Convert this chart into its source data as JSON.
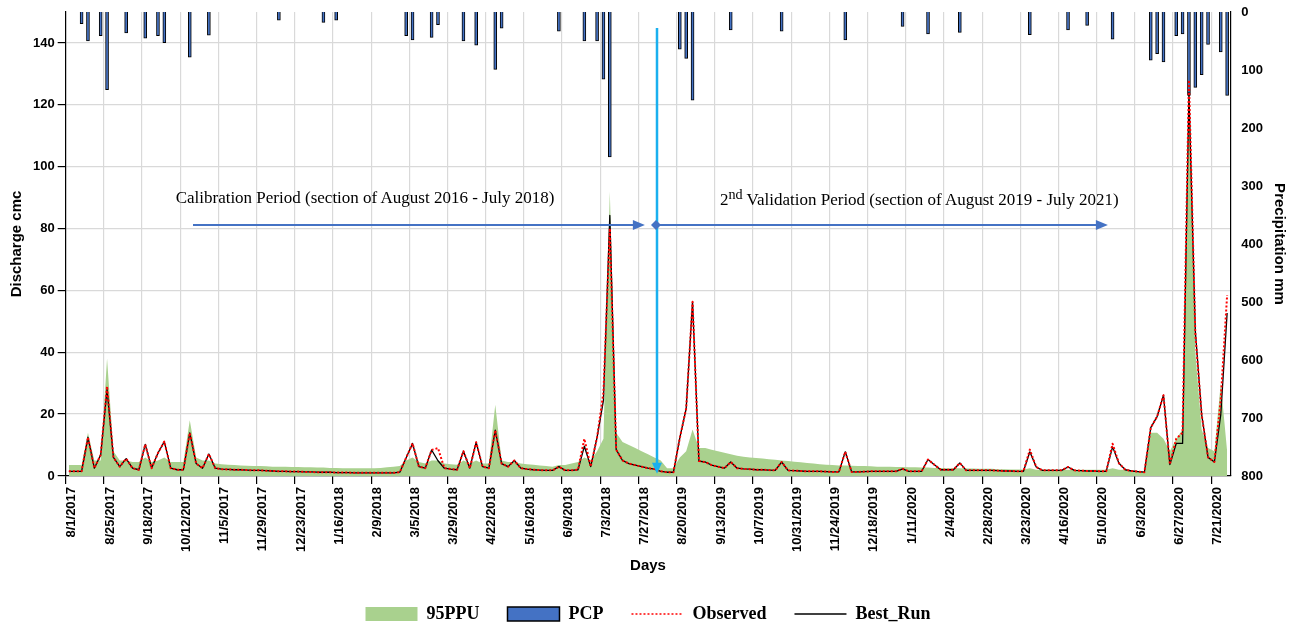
{
  "chart_data": {
    "type": "line",
    "xlabel": "Days",
    "ylabel": "Discharge cmc",
    "y2label": "Precipitation mm",
    "annotations": [
      "Calibration Period (section of August 2016 - July 2018)",
      "2$^{nd}$ Validation Period (section of August 2019 - July 2021)"
    ],
    "categories": [
      "8/1/2017",
      null,
      null,
      null,
      null,
      null,
      "8/25/2017",
      null,
      null,
      null,
      null,
      null,
      "9/18/2017",
      null,
      null,
      null,
      null,
      null,
      "10/12/2017",
      null,
      null,
      null,
      null,
      null,
      "11/5/2017",
      null,
      null,
      null,
      null,
      null,
      "11/29/2017",
      null,
      null,
      null,
      null,
      null,
      "12/23/2017",
      null,
      null,
      null,
      null,
      null,
      "1/16/2018",
      null,
      null,
      null,
      null,
      null,
      "2/9/2018",
      null,
      null,
      null,
      null,
      null,
      "3/5/2018",
      null,
      null,
      null,
      null,
      null,
      "3/29/2018",
      null,
      null,
      null,
      null,
      null,
      "4/22/2018",
      null,
      null,
      null,
      null,
      null,
      "5/16/2018",
      null,
      null,
      null,
      null,
      null,
      "6/9/2018",
      null,
      null,
      null,
      null,
      null,
      "7/3/2018",
      null,
      null,
      null,
      null,
      null,
      "7/27/2018",
      null,
      null,
      null,
      null,
      null,
      "8/20/2019",
      null,
      null,
      null,
      null,
      null,
      "9/13/2019",
      null,
      null,
      null,
      null,
      null,
      "10/7/2019",
      null,
      null,
      null,
      null,
      null,
      "10/31/2019",
      null,
      null,
      null,
      null,
      null,
      "11/24/2019",
      null,
      null,
      null,
      null,
      null,
      "12/18/2019",
      null,
      null,
      null,
      null,
      null,
      "1/11/2020",
      null,
      null,
      null,
      null,
      null,
      "2/4/2020",
      null,
      null,
      null,
      null,
      null,
      "2/28/2020",
      null,
      null,
      null,
      null,
      null,
      "3/23/2020",
      null,
      null,
      null,
      null,
      null,
      "4/16/2020",
      null,
      null,
      null,
      null,
      null,
      "5/10/2020",
      null,
      null,
      null,
      null,
      null,
      "6/3/2020",
      null,
      null,
      null,
      null,
      null,
      "6/27/2020",
      null,
      null,
      null,
      null,
      null,
      "7/21/2020",
      null,
      null
    ],
    "ylim": [
      0,
      150
    ],
    "yticks": [
      0,
      20,
      40,
      60,
      80,
      100,
      120,
      140
    ],
    "y2lim": [
      800,
      0
    ],
    "y2ticks": [
      0,
      100,
      200,
      300,
      400,
      500,
      600,
      700,
      800
    ],
    "grid": true,
    "legend": "bottom",
    "marker": "none",
    "series": [
      {
        "name": "95PPU",
        "type": "area",
        "color": "#a9d18e",
        "values": [
          3.5,
          3.5,
          3.5,
          14,
          5,
          5,
          38,
          8,
          5,
          5,
          4.5,
          4.5,
          6,
          4.5,
          5,
          6,
          4.5,
          4.5,
          4.5,
          18,
          6,
          5,
          5,
          4,
          3.8,
          3.6,
          3.5,
          3.4,
          3.3,
          3.2,
          3.2,
          3.1,
          3,
          3,
          3,
          2.9,
          2.9,
          2.8,
          2.8,
          2.7,
          2.7,
          2.6,
          2.6,
          2.5,
          2.5,
          2.5,
          2.5,
          2.5,
          2.5,
          2.6,
          2.8,
          3,
          3.2,
          5,
          6,
          4.5,
          4,
          5,
          5,
          4,
          3.8,
          3.6,
          5,
          4,
          5,
          4,
          4,
          23,
          5,
          4.5,
          4.5,
          4,
          3.8,
          3.6,
          3.4,
          3.2,
          3,
          3.5,
          3.5,
          4,
          4.5,
          6,
          5,
          8,
          12,
          92,
          14,
          11,
          10,
          9,
          8,
          7,
          6,
          5,
          2.5,
          2.5,
          6,
          8,
          15,
          9,
          9,
          8.5,
          8,
          7.5,
          7,
          6.5,
          6.2,
          6,
          5.8,
          5.6,
          5.4,
          5.2,
          5,
          4.8,
          4.6,
          4.4,
          4.2,
          4,
          3.8,
          3.6,
          3.5,
          3.4,
          3.4,
          3.3,
          3.2,
          3.2,
          3.1,
          3,
          3,
          3,
          2.9,
          2.9,
          2.8,
          2.8,
          2.7,
          2.7,
          2.6,
          2.6,
          2.5,
          2.5,
          2.5,
          2.4,
          2.4,
          2.3,
          2.3,
          2.3,
          2.2,
          2.2,
          2.1,
          2.1,
          2.1,
          2.5,
          2,
          2,
          2,
          2,
          2,
          2,
          2,
          2,
          2,
          2,
          2,
          2,
          2.5,
          2,
          2,
          1.8,
          1.6,
          1.5,
          14,
          14,
          12,
          8,
          12,
          15,
          130,
          40,
          15,
          9,
          8,
          30,
          8
        ]
      },
      {
        "name": "PCP",
        "type": "bar",
        "axis": "y2",
        "color": "#4472c4",
        "values": [
          0,
          0,
          20,
          50,
          0,
          41,
          134,
          0,
          0,
          36,
          0,
          0,
          45,
          0,
          41,
          53,
          0,
          0,
          0,
          78,
          0,
          0,
          40,
          0,
          0,
          0,
          0,
          0,
          0,
          0,
          0,
          0,
          0,
          14,
          0,
          0,
          0,
          0,
          0,
          0,
          18,
          0,
          14,
          0,
          0,
          0,
          0,
          0,
          0,
          0,
          0,
          0,
          0,
          41,
          48,
          0,
          0,
          44,
          22,
          0,
          0,
          0,
          50,
          0,
          57,
          0,
          0,
          99,
          28,
          0,
          0,
          0,
          0,
          0,
          0,
          0,
          0,
          33,
          0,
          0,
          0,
          50,
          0,
          50,
          116,
          250,
          0,
          0,
          0,
          0,
          0,
          0,
          0,
          0,
          0,
          0,
          64,
          80,
          152,
          0,
          0,
          0,
          0,
          0,
          31,
          0,
          0,
          0,
          0,
          0,
          0,
          0,
          33,
          0,
          0,
          0,
          0,
          0,
          0,
          0,
          0,
          0,
          48,
          0,
          0,
          0,
          0,
          0,
          0,
          0,
          0,
          25,
          0,
          0,
          0,
          38,
          0,
          0,
          0,
          0,
          35,
          0,
          0,
          0,
          0,
          0,
          0,
          0,
          0,
          0,
          0,
          39,
          0,
          0,
          0,
          0,
          0,
          31,
          0,
          0,
          23,
          0,
          0,
          0,
          47,
          0,
          0,
          0,
          0,
          0,
          83,
          72,
          86,
          0,
          41,
          38,
          144,
          130,
          108,
          56,
          0,
          69,
          144
        ]
      },
      {
        "name": "Observed",
        "color": "#ff0000",
        "line_style": "dotted",
        "values": [
          1.5,
          1.5,
          1.5,
          12.5,
          2.5,
          6.8,
          29,
          6,
          3,
          5.6,
          2.5,
          2,
          10.2,
          2.5,
          7.4,
          11.1,
          2.5,
          2,
          2,
          13.9,
          4,
          2.5,
          7.1,
          2.5,
          2.2,
          2.1,
          2,
          2,
          1.9,
          1.8,
          1.8,
          1.7,
          1.6,
          1.5,
          1.5,
          1.4,
          1.4,
          1.3,
          1.3,
          1.2,
          1.2,
          1.2,
          1.1,
          1.1,
          1.1,
          1,
          1,
          1,
          1,
          1,
          1,
          1,
          1.2,
          5.9,
          10.5,
          3,
          2.5,
          8.4,
          9,
          2.5,
          2.2,
          2,
          8,
          2.5,
          10.9,
          3,
          2.5,
          14.8,
          4,
          3,
          5,
          2.5,
          2.2,
          2,
          1.9,
          1.8,
          1.8,
          3,
          1.8,
          1.8,
          2,
          12,
          3,
          12.5,
          27,
          80,
          8.5,
          5,
          4,
          3.5,
          3,
          2.5,
          2.2,
          1.5,
          1.2,
          1.2,
          12.3,
          21.8,
          56.3,
          4.8,
          4.5,
          3.5,
          3,
          2.5,
          4.5,
          2.5,
          2.3,
          2.2,
          2,
          2,
          1.9,
          1.8,
          4.5,
          1.8,
          1.7,
          1.6,
          1.5,
          1.5,
          1.5,
          1.4,
          1.3,
          1.3,
          7.8,
          1.3,
          1.3,
          1.4,
          1.5,
          1.5,
          1.5,
          1.5,
          1.5,
          2.3,
          1.5,
          1.5,
          1.5,
          5.3,
          3.6,
          2,
          2,
          2,
          4.2,
          1.8,
          1.8,
          1.8,
          1.8,
          1.8,
          1.7,
          1.6,
          1.6,
          1.5,
          1.5,
          8.5,
          2.9,
          1.8,
          1.8,
          1.8,
          1.8,
          2.9,
          1.8,
          1.7,
          1.6,
          1.6,
          1.5,
          1.5,
          10.4,
          4.1,
          2,
          1.6,
          1.4,
          1.2,
          15.6,
          19.2,
          26.1,
          3.7,
          12,
          14,
          128,
          46,
          19.8,
          6,
          4.5,
          24.8,
          58.5
        ]
      },
      {
        "name": "Best_Run",
        "color": "#000000",
        "line_style": "solid",
        "values": [
          1.5,
          1.5,
          1.5,
          12.5,
          2.5,
          6.8,
          28,
          6,
          3,
          5.6,
          2.5,
          2,
          10.2,
          2.5,
          7.4,
          11.1,
          2.5,
          2,
          2,
          13.9,
          4,
          2.5,
          7.1,
          2.5,
          2.2,
          2.1,
          2,
          2,
          1.9,
          1.8,
          1.8,
          1.7,
          1.6,
          1.5,
          1.5,
          1.4,
          1.4,
          1.3,
          1.3,
          1.2,
          1.2,
          1.2,
          1.1,
          1.1,
          1.1,
          1,
          1,
          1,
          1,
          1,
          1,
          1,
          1.2,
          5.9,
          10.5,
          3,
          2.5,
          8.4,
          4.9,
          2.5,
          2.2,
          2,
          8,
          2.5,
          10.9,
          3,
          2.5,
          14.8,
          4,
          3,
          5,
          2.5,
          2.2,
          2,
          1.9,
          1.8,
          1.8,
          3,
          1.8,
          1.8,
          2,
          9.6,
          3,
          12.5,
          24.4,
          84.2,
          8.5,
          5,
          4,
          3.5,
          3,
          2.5,
          2.2,
          1.5,
          1.2,
          1.2,
          12.3,
          21.8,
          56.3,
          4.8,
          4.5,
          3.5,
          3,
          2.5,
          4.5,
          2.5,
          2.3,
          2.2,
          2,
          2,
          1.9,
          1.8,
          4.5,
          1.8,
          1.7,
          1.6,
          1.5,
          1.5,
          1.5,
          1.4,
          1.3,
          1.3,
          7.8,
          1.3,
          1.3,
          1.4,
          1.5,
          1.5,
          1.5,
          1.5,
          1.5,
          2.3,
          1.5,
          1.5,
          1.5,
          5.3,
          3.6,
          2,
          2,
          2,
          4.2,
          1.8,
          1.8,
          1.8,
          1.8,
          1.8,
          1.7,
          1.6,
          1.6,
          1.5,
          1.5,
          7.8,
          2.9,
          1.8,
          1.8,
          1.8,
          1.8,
          2.9,
          1.8,
          1.7,
          1.6,
          1.6,
          1.5,
          1.5,
          9.4,
          4.1,
          2,
          1.6,
          1.4,
          1.2,
          15.6,
          19.2,
          26.1,
          3.7,
          10.5,
          10.5,
          124,
          47,
          19.8,
          6,
          4.5,
          19.8,
          52.7
        ]
      }
    ]
  }
}
